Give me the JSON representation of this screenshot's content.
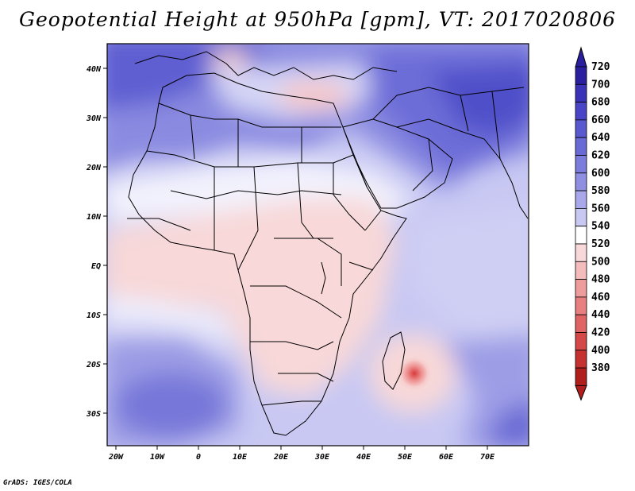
{
  "title": "Geopotential Height at 950hPa [gpm], VT: 2017020806",
  "credit": "GrADS: IGES/COLA",
  "map": {
    "lat_labels": [
      "40N",
      "30N",
      "20N",
      "10N",
      "EQ",
      "10S",
      "20S",
      "30S"
    ],
    "lon_labels": [
      "20W",
      "10W",
      "0",
      "10E",
      "20E",
      "30E",
      "40E",
      "50E",
      "60E",
      "70E"
    ]
  },
  "colorbar": {
    "levels": [
      "720",
      "700",
      "680",
      "660",
      "640",
      "620",
      "600",
      "580",
      "560",
      "540",
      "520",
      "500",
      "480",
      "460",
      "440",
      "420",
      "400",
      "380"
    ],
    "colors": [
      "#2a1f9e",
      "#3a33b8",
      "#4a45c6",
      "#5a58cf",
      "#6a6ad6",
      "#7c7cdc",
      "#9090e3",
      "#a8a8ea",
      "#c8c8f3",
      "#ffffff",
      "#f8d8d8",
      "#f4bcbc",
      "#ee9c9c",
      "#e88080",
      "#e06464",
      "#d44848",
      "#c63232",
      "#b01e1e"
    ]
  }
}
